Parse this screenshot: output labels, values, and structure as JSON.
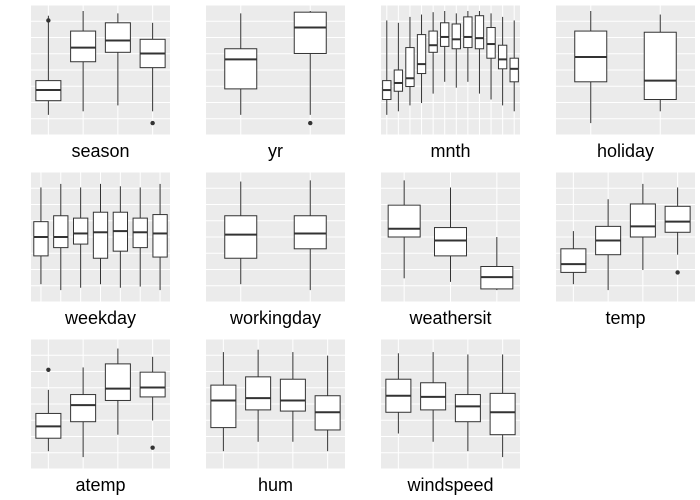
{
  "chart_data": [
    {
      "type": "boxplot",
      "xlabel": "season",
      "ylim": [
        0,
        1
      ],
      "boxes": [
        {
          "low": 0.12,
          "q1": 0.24,
          "median": 0.33,
          "q3": 0.41,
          "high": 0.96,
          "outliers": [
            0.92
          ]
        },
        {
          "low": 0.15,
          "q1": 0.57,
          "median": 0.69,
          "q3": 0.83,
          "high": 1.0,
          "outliers": []
        },
        {
          "low": 0.2,
          "q1": 0.65,
          "median": 0.75,
          "q3": 0.9,
          "high": 0.98,
          "outliers": []
        },
        {
          "low": 0.15,
          "q1": 0.52,
          "median": 0.64,
          "q3": 0.76,
          "high": 0.9,
          "outliers": [
            0.05
          ]
        }
      ]
    },
    {
      "type": "boxplot",
      "xlabel": "yr",
      "ylim": [
        0,
        1
      ],
      "boxes": [
        {
          "low": 0.12,
          "q1": 0.34,
          "median": 0.59,
          "q3": 0.68,
          "high": 0.98,
          "outliers": []
        },
        {
          "low": 0.12,
          "q1": 0.64,
          "median": 0.86,
          "q3": 0.99,
          "high": 1.0,
          "outliers": [
            0.05
          ]
        }
      ]
    },
    {
      "type": "boxplot",
      "xlabel": "mnth",
      "ylim": [
        0,
        1
      ],
      "boxes": [
        {
          "low": 0.12,
          "q1": 0.25,
          "median": 0.33,
          "q3": 0.41,
          "high": 0.92,
          "outliers": []
        },
        {
          "low": 0.15,
          "q1": 0.32,
          "median": 0.39,
          "q3": 0.5,
          "high": 0.9,
          "outliers": []
        },
        {
          "low": 0.2,
          "q1": 0.36,
          "median": 0.43,
          "q3": 0.69,
          "high": 0.95,
          "outliers": []
        },
        {
          "low": 0.22,
          "q1": 0.47,
          "median": 0.55,
          "q3": 0.8,
          "high": 0.97,
          "outliers": []
        },
        {
          "low": 0.3,
          "q1": 0.65,
          "median": 0.71,
          "q3": 0.83,
          "high": 0.99,
          "outliers": []
        },
        {
          "low": 0.4,
          "q1": 0.7,
          "median": 0.78,
          "q3": 0.9,
          "high": 1.0,
          "outliers": []
        },
        {
          "low": 0.35,
          "q1": 0.68,
          "median": 0.76,
          "q3": 0.89,
          "high": 0.98,
          "outliers": []
        },
        {
          "low": 0.4,
          "q1": 0.69,
          "median": 0.78,
          "q3": 0.95,
          "high": 1.0,
          "outliers": []
        },
        {
          "low": 0.3,
          "q1": 0.68,
          "median": 0.77,
          "q3": 0.96,
          "high": 1.0,
          "outliers": []
        },
        {
          "low": 0.25,
          "q1": 0.6,
          "median": 0.72,
          "q3": 0.86,
          "high": 0.98,
          "outliers": []
        },
        {
          "low": 0.2,
          "q1": 0.51,
          "median": 0.59,
          "q3": 0.71,
          "high": 0.95,
          "outliers": []
        },
        {
          "low": 0.15,
          "q1": 0.4,
          "median": 0.51,
          "q3": 0.6,
          "high": 0.92,
          "outliers": []
        }
      ]
    },
    {
      "type": "boxplot",
      "xlabel": "holiday",
      "ylim": [
        0,
        1
      ],
      "boxes": [
        {
          "low": 0.05,
          "q1": 0.4,
          "median": 0.61,
          "q3": 0.83,
          "high": 1.0,
          "outliers": []
        },
        {
          "low": 0.15,
          "q1": 0.25,
          "median": 0.41,
          "q3": 0.82,
          "high": 0.97,
          "outliers": []
        }
      ]
    },
    {
      "type": "boxplot",
      "xlabel": "weekday",
      "ylim": [
        0,
        1
      ],
      "boxes": [
        {
          "low": 0.1,
          "q1": 0.34,
          "median": 0.5,
          "q3": 0.63,
          "high": 0.92,
          "outliers": []
        },
        {
          "low": 0.05,
          "q1": 0.41,
          "median": 0.5,
          "q3": 0.68,
          "high": 0.95,
          "outliers": []
        },
        {
          "low": 0.07,
          "q1": 0.44,
          "median": 0.53,
          "q3": 0.66,
          "high": 0.92,
          "outliers": []
        },
        {
          "low": 0.1,
          "q1": 0.32,
          "median": 0.54,
          "q3": 0.71,
          "high": 0.95,
          "outliers": []
        },
        {
          "low": 0.07,
          "q1": 0.38,
          "median": 0.55,
          "q3": 0.71,
          "high": 0.93,
          "outliers": []
        },
        {
          "low": 0.08,
          "q1": 0.41,
          "median": 0.54,
          "q3": 0.66,
          "high": 0.92,
          "outliers": []
        },
        {
          "low": 0.05,
          "q1": 0.33,
          "median": 0.53,
          "q3": 0.69,
          "high": 0.95,
          "outliers": []
        }
      ]
    },
    {
      "type": "boxplot",
      "xlabel": "workingday",
      "ylim": [
        0,
        1
      ],
      "boxes": [
        {
          "low": 0.1,
          "q1": 0.32,
          "median": 0.52,
          "q3": 0.68,
          "high": 0.97,
          "outliers": []
        },
        {
          "low": 0.05,
          "q1": 0.4,
          "median": 0.53,
          "q3": 0.68,
          "high": 0.98,
          "outliers": []
        }
      ]
    },
    {
      "type": "boxplot",
      "xlabel": "weathersit",
      "ylim": [
        0,
        1
      ],
      "boxes": [
        {
          "low": 0.15,
          "q1": 0.5,
          "median": 0.57,
          "q3": 0.77,
          "high": 0.98,
          "outliers": []
        },
        {
          "low": 0.12,
          "q1": 0.34,
          "median": 0.47,
          "q3": 0.58,
          "high": 0.92,
          "outliers": []
        },
        {
          "low": 0.05,
          "q1": 0.06,
          "median": 0.16,
          "q3": 0.25,
          "high": 0.5,
          "outliers": []
        }
      ]
    },
    {
      "type": "boxplot",
      "xlabel": "temp",
      "ylim": [
        0,
        1
      ],
      "boxes": [
        {
          "low": 0.1,
          "q1": 0.2,
          "median": 0.27,
          "q3": 0.4,
          "high": 0.55,
          "outliers": []
        },
        {
          "low": 0.05,
          "q1": 0.35,
          "median": 0.47,
          "q3": 0.59,
          "high": 0.82,
          "outliers": []
        },
        {
          "low": 0.22,
          "q1": 0.5,
          "median": 0.59,
          "q3": 0.78,
          "high": 0.95,
          "outliers": []
        },
        {
          "low": 0.35,
          "q1": 0.54,
          "median": 0.63,
          "q3": 0.76,
          "high": 0.92,
          "outliers": [
            0.2
          ]
        }
      ]
    },
    {
      "type": "boxplot",
      "xlabel": "atemp",
      "ylim": [
        0,
        1
      ],
      "boxes": [
        {
          "low": 0.1,
          "q1": 0.21,
          "median": 0.31,
          "q3": 0.42,
          "high": 0.62,
          "outliers": [
            0.79
          ]
        },
        {
          "low": 0.05,
          "q1": 0.35,
          "median": 0.49,
          "q3": 0.58,
          "high": 0.81,
          "outliers": []
        },
        {
          "low": 0.24,
          "q1": 0.53,
          "median": 0.63,
          "q3": 0.84,
          "high": 0.97,
          "outliers": []
        },
        {
          "low": 0.36,
          "q1": 0.56,
          "median": 0.64,
          "q3": 0.77,
          "high": 0.9,
          "outliers": [
            0.13
          ]
        }
      ]
    },
    {
      "type": "boxplot",
      "xlabel": "hum",
      "ylim": [
        0,
        1
      ],
      "boxes": [
        {
          "low": 0.1,
          "q1": 0.3,
          "median": 0.53,
          "q3": 0.66,
          "high": 0.94,
          "outliers": []
        },
        {
          "low": 0.18,
          "q1": 0.45,
          "median": 0.55,
          "q3": 0.73,
          "high": 0.96,
          "outliers": []
        },
        {
          "low": 0.18,
          "q1": 0.44,
          "median": 0.53,
          "q3": 0.71,
          "high": 0.94,
          "outliers": []
        },
        {
          "low": 0.1,
          "q1": 0.28,
          "median": 0.43,
          "q3": 0.57,
          "high": 0.91,
          "outliers": []
        }
      ]
    },
    {
      "type": "boxplot",
      "xlabel": "windspeed",
      "ylim": [
        0,
        1
      ],
      "boxes": [
        {
          "low": 0.25,
          "q1": 0.43,
          "median": 0.57,
          "q3": 0.71,
          "high": 0.93,
          "outliers": []
        },
        {
          "low": 0.18,
          "q1": 0.45,
          "median": 0.56,
          "q3": 0.68,
          "high": 0.94,
          "outliers": []
        },
        {
          "low": 0.1,
          "q1": 0.35,
          "median": 0.48,
          "q3": 0.58,
          "high": 0.92,
          "outliers": []
        },
        {
          "low": 0.05,
          "q1": 0.24,
          "median": 0.43,
          "q3": 0.59,
          "high": 0.92,
          "outliers": []
        }
      ]
    }
  ]
}
